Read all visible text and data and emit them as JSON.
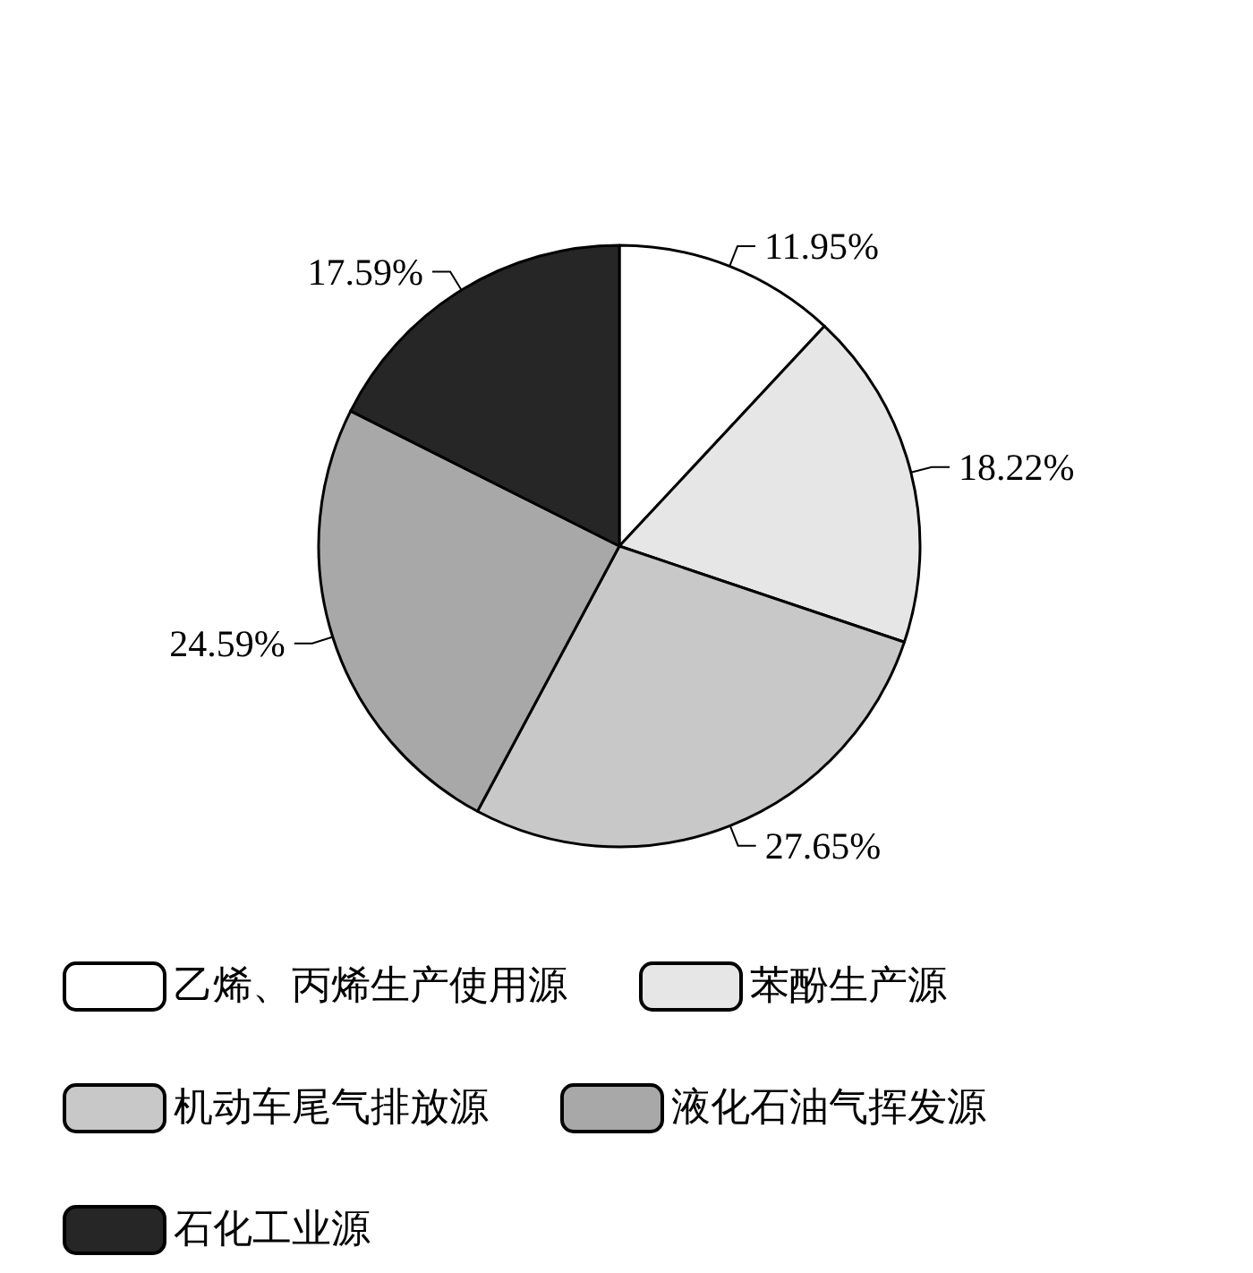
{
  "chart_data": {
    "type": "pie",
    "categories": [
      "乙烯、丙烯生产使用源",
      "苯酚生产源",
      "机动车尾气排放源",
      "液化石油气挥发源",
      "石化工业源"
    ],
    "values": [
      11.95,
      18.22,
      27.65,
      24.59,
      17.59
    ],
    "colors": [
      "#ffffff",
      "#e6e6e6",
      "#c8c8c8",
      "#a8a8a8",
      "#262626"
    ],
    "value_labels": [
      "11.95%",
      "18.22%",
      "27.65%",
      "24.59%",
      "17.59%"
    ],
    "legend": "bottom"
  }
}
